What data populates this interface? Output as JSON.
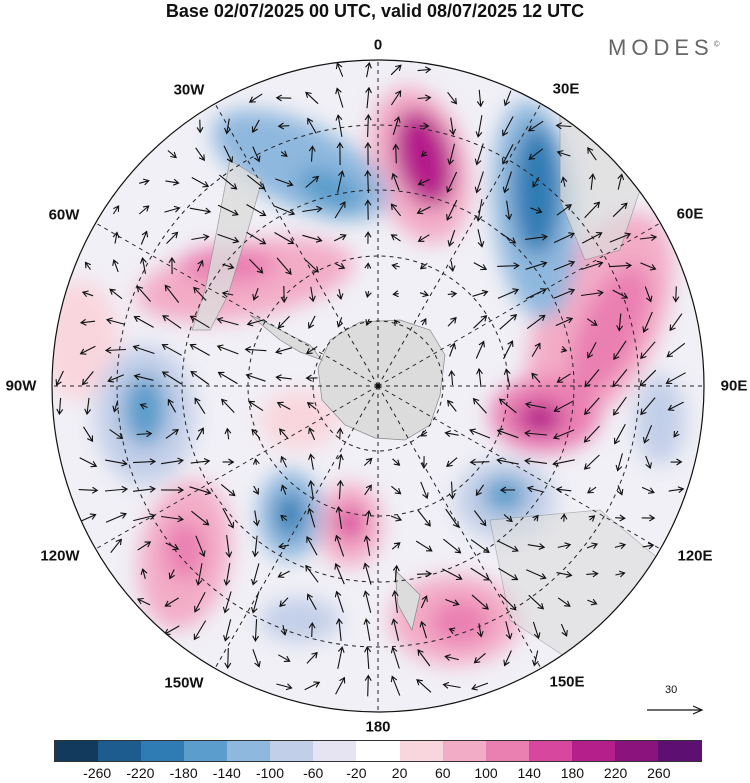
{
  "title": "Base 02/07/2025 00 UTC, valid 08/07/2025 12 UTC",
  "brand": "MODES",
  "brand_mark": "©",
  "longitude_labels": {
    "n0": "0",
    "n30e": "30E",
    "n60e": "60E",
    "n90e": "90E",
    "n120e": "120E",
    "n150e": "150E",
    "n180": "180",
    "n150w": "150W",
    "n120w": "120W",
    "n90w": "90W",
    "n60w": "60W",
    "n30w": "30W"
  },
  "reference_vector_label": "30",
  "colorbar": {
    "ticks": [
      "-260",
      "-220",
      "-180",
      "-140",
      "-100",
      "-60",
      "-20",
      "20",
      "60",
      "100",
      "140",
      "180",
      "220",
      "260"
    ],
    "colors": [
      "#123a5c",
      "#1c5c8e",
      "#2f7cb4",
      "#5b9dcc",
      "#8fb8de",
      "#c2cfe8",
      "#e6e4f2",
      "#ffffff",
      "#f9d6de",
      "#f3acc6",
      "#ea7fb2",
      "#d8479e",
      "#b51f8b",
      "#8a137e",
      "#5e1072"
    ]
  },
  "map_style": {
    "land_color": "#d8d8d8",
    "grid_color": "#222222",
    "arrow_color": "#111111"
  }
}
